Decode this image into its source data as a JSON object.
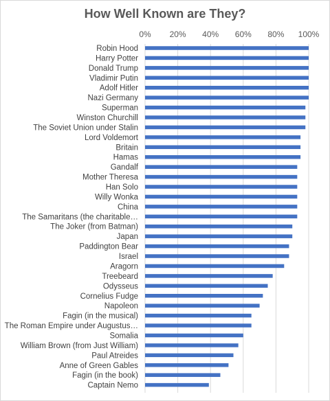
{
  "chart_data": {
    "type": "bar",
    "orientation": "horizontal",
    "title": "How Well Known are They?",
    "xlabel": "",
    "ylabel": "",
    "xlim": [
      0,
      1
    ],
    "x_ticks": [
      "0%",
      "20%",
      "40%",
      "60%",
      "80%",
      "100%"
    ],
    "x_tick_values": [
      0,
      0.2,
      0.4,
      0.6,
      0.8,
      1.0
    ],
    "x_axis_position": "top",
    "grid": true,
    "legend": "none",
    "bar_color": "#4472C4",
    "categories": [
      "Robin Hood",
      "Harry Potter",
      "Donald Trump",
      "Vladimir Putin",
      "Adolf Hitler",
      "Nazi Germany",
      "Superman",
      "Winston Churchill",
      "The Soviet Union under Stalin",
      "Lord Voldemort",
      "Britain",
      "Hamas",
      "Gandalf",
      "Mother Theresa",
      "Han Solo",
      "Willy Wonka",
      "China",
      "The Samaritans (the charitable…",
      "The Joker (from Batman)",
      "Japan",
      "Paddington Bear",
      "Israel",
      "Aragorn",
      "Treebeard",
      "Odysseus",
      "Cornelius Fudge",
      "Napoleon",
      "Fagin (in the musical)",
      "The Roman Empire under Augustus…",
      "Somalia",
      "William Brown (from Just William)",
      "Paul Atreides",
      "Anne of Green Gables",
      "Fagin (in the book)",
      "Captain Nemo"
    ],
    "values": [
      1.0,
      1.0,
      1.0,
      1.0,
      1.0,
      1.0,
      0.98,
      0.98,
      0.98,
      0.95,
      0.95,
      0.95,
      0.93,
      0.93,
      0.93,
      0.93,
      0.93,
      0.93,
      0.9,
      0.9,
      0.88,
      0.88,
      0.85,
      0.78,
      0.75,
      0.72,
      0.7,
      0.65,
      0.65,
      0.6,
      0.57,
      0.54,
      0.51,
      0.46,
      0.39
    ]
  }
}
